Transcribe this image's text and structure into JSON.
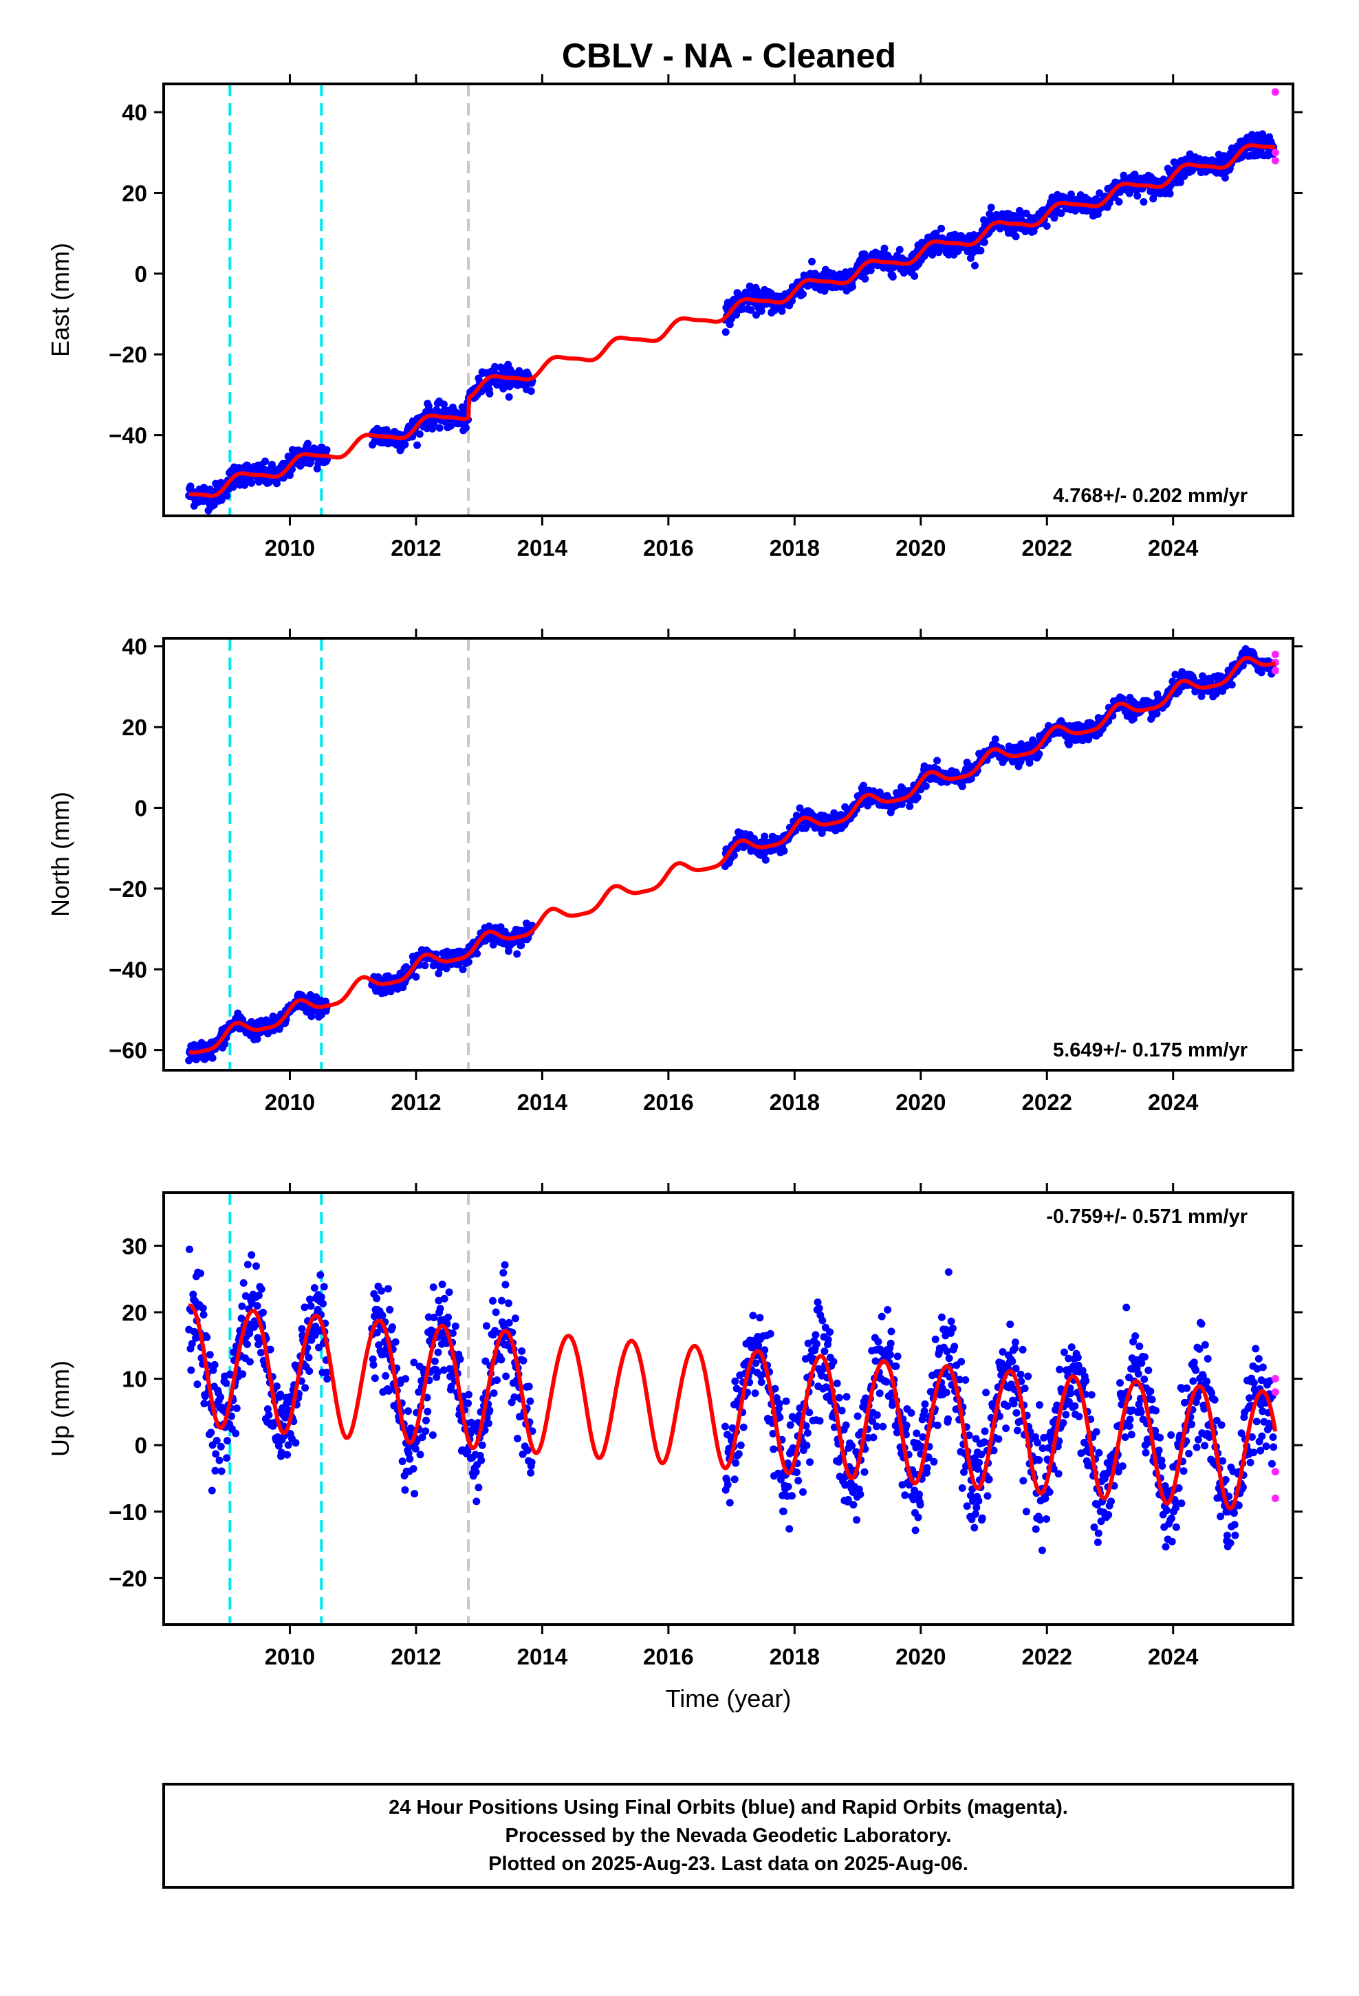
{
  "title": "CBLV  - NA - Cleaned",
  "footer": {
    "line1": "24 Hour Positions Using Final Orbits (blue) and Rapid Orbits (magenta).",
    "line2": "Processed by the Nevada Geodetic Laboratory.",
    "line3": "Plotted on 2025-Aug-23. Last data on 2025-Aug-06."
  },
  "colors": {
    "final_orbit_points": "#0000ff",
    "rapid_orbit_points": "#ff22ff",
    "model_fit": "#ff0000",
    "equipment_change_lines": "#00e5ee",
    "other_event_line": "#c8c8c8"
  },
  "chart_data": [
    {
      "type": "scatter",
      "component": "East",
      "ylabel": "East (mm)",
      "xlabel": "",
      "xlim": [
        2008.0,
        2025.9
      ],
      "ylim": [
        -60,
        47
      ],
      "xticks": [
        2010,
        2012,
        2014,
        2016,
        2018,
        2020,
        2022,
        2024
      ],
      "yticks": [
        -40,
        -20,
        0,
        20,
        40
      ],
      "rate": "4.768+/- 0.202 mm/yr",
      "rate_position": "bottom-right",
      "trend": {
        "slope": 4.768,
        "intercept": -47.5,
        "ref_year": 2010.0,
        "annual_amp": 1.6,
        "annual_phase": 0.0,
        "semiannual_amp": 0.4,
        "offsets": [
          {
            "year": 2012.83,
            "value": 5.0
          }
        ]
      },
      "data_spans": [
        [
          2008.4,
          2010.6
        ],
        [
          2011.3,
          2013.85
        ],
        [
          2016.9,
          2025.6
        ]
      ],
      "scatter_noise": 1.4,
      "vertical_lines": [
        {
          "x": 2009.05,
          "kind": "equipment"
        },
        {
          "x": 2010.5,
          "kind": "equipment"
        },
        {
          "x": 2012.83,
          "kind": "other"
        }
      ],
      "rapid_points": [
        {
          "x": 2025.62,
          "y": 45
        },
        {
          "x": 2025.62,
          "y": 30
        },
        {
          "x": 2025.62,
          "y": 28
        }
      ]
    },
    {
      "type": "scatter",
      "component": "North",
      "ylabel": "North (mm)",
      "xlabel": "",
      "xlim": [
        2008.0,
        2025.9
      ],
      "ylim": [
        -65,
        42
      ],
      "xticks": [
        2010,
        2012,
        2014,
        2016,
        2018,
        2020,
        2022,
        2024
      ],
      "yticks": [
        -60,
        -40,
        -20,
        0,
        20,
        40
      ],
      "rate": "5.649+/- 0.175 mm/yr",
      "rate_position": "bottom-right",
      "trend": {
        "slope": 5.649,
        "intercept": -51.0,
        "ref_year": 2010.0,
        "annual_amp": 2.0,
        "annual_phase": 0.6,
        "semiannual_amp": 0.5,
        "offsets": []
      },
      "data_spans": [
        [
          2008.4,
          2010.6
        ],
        [
          2011.3,
          2013.85
        ],
        [
          2016.9,
          2025.6
        ]
      ],
      "scatter_noise": 1.1,
      "vertical_lines": [
        {
          "x": 2009.05,
          "kind": "equipment"
        },
        {
          "x": 2010.5,
          "kind": "equipment"
        },
        {
          "x": 2012.83,
          "kind": "other"
        }
      ],
      "rapid_points": [
        {
          "x": 2025.62,
          "y": 38
        },
        {
          "x": 2025.62,
          "y": 36
        },
        {
          "x": 2025.62,
          "y": 34
        }
      ]
    },
    {
      "type": "scatter",
      "component": "Up",
      "ylabel": "Up (mm)",
      "xlabel": "Time (year)",
      "xlim": [
        2008.0,
        2025.9
      ],
      "ylim": [
        -27,
        38
      ],
      "xticks": [
        2010,
        2012,
        2014,
        2016,
        2018,
        2020,
        2022,
        2024
      ],
      "yticks": [
        -20,
        -10,
        0,
        10,
        20,
        30
      ],
      "rate": "-0.759+/- 0.571 mm/yr",
      "rate_position": "top-right",
      "trend": {
        "slope": -0.759,
        "intercept": 12.0,
        "ref_year": 2009.0,
        "annual_amp": 9.0,
        "annual_phase": -1.0,
        "semiannual_amp": 0.5,
        "offsets": []
      },
      "data_spans": [
        [
          2008.4,
          2010.6
        ],
        [
          2011.3,
          2013.85
        ],
        [
          2016.9,
          2025.6
        ]
      ],
      "scatter_noise": 4.0,
      "vertical_lines": [
        {
          "x": 2009.05,
          "kind": "equipment"
        },
        {
          "x": 2010.5,
          "kind": "equipment"
        },
        {
          "x": 2012.83,
          "kind": "other"
        }
      ],
      "rapid_points": [
        {
          "x": 2025.62,
          "y": 10
        },
        {
          "x": 2025.62,
          "y": 8
        },
        {
          "x": 2025.62,
          "y": -4
        },
        {
          "x": 2025.62,
          "y": -8
        }
      ]
    }
  ]
}
